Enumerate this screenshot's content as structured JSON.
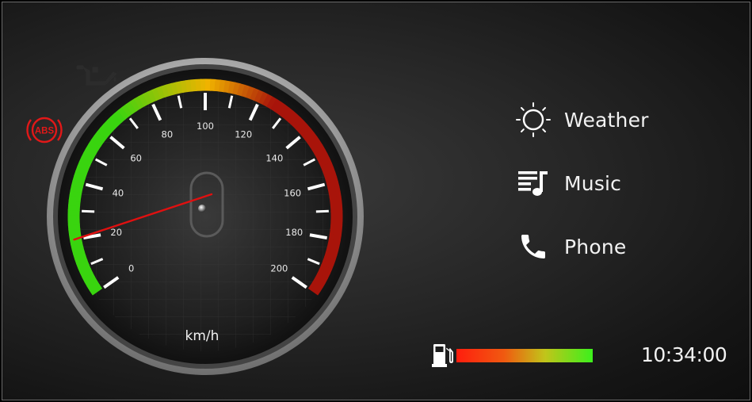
{
  "gauge": {
    "unit": "km/h",
    "min": 0,
    "max": 200,
    "speed": 20,
    "major_ticks": [
      "0",
      "20",
      "40",
      "60",
      "80",
      "100",
      "120",
      "140",
      "160",
      "180",
      "200"
    ],
    "colors": {
      "low": "#39d40f",
      "mid": "#f0b300",
      "high": "#a8140a",
      "needle": "#e01010"
    }
  },
  "warnings": [
    {
      "name": "oil-pressure-icon",
      "active": false
    },
    {
      "name": "abs-icon",
      "label": "ABS",
      "active": true,
      "color": "#e11818"
    }
  ],
  "menu": [
    {
      "label": "Weather",
      "icon": "sun-icon"
    },
    {
      "label": "Music",
      "icon": "music-playlist-icon"
    },
    {
      "label": "Phone",
      "icon": "phone-icon"
    }
  ],
  "fuel": {
    "level": 1.0,
    "icon": "fuel-pump-icon"
  },
  "clock": "10:34:00"
}
